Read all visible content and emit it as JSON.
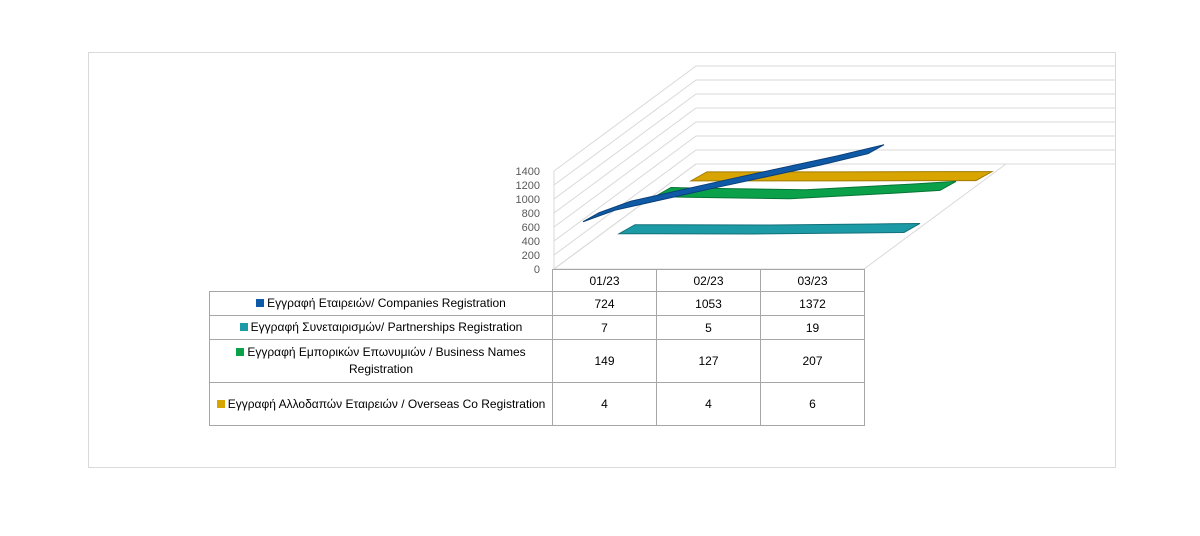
{
  "chart_data": {
    "type": "line",
    "style": "3d",
    "categories": [
      "01/23",
      "02/23",
      "03/23"
    ],
    "ylim": [
      0,
      1400
    ],
    "yticks": [
      0,
      200,
      400,
      600,
      800,
      1000,
      1200,
      1400
    ],
    "grid": true,
    "legend": "table",
    "series": [
      {
        "name": "Εγγραφή  Εταιρειών/ Companies Registration",
        "values": [
          724,
          1053,
          1372
        ],
        "color": "#0f5aa7",
        "dark": "#0b3f78"
      },
      {
        "name": "Εγγραφή  Συνεταιρισμών/ Partnerships Registration",
        "values": [
          7,
          5,
          19
        ],
        "color": "#1c9aa6",
        "dark": "#137079"
      },
      {
        "name": "Εγγραφή  Εμπορικών Επωνυμιών / Business Names Registration",
        "values": [
          149,
          127,
          207
        ],
        "color": "#0aa14a",
        "dark": "#077535"
      },
      {
        "name": "Εγγραφή  Αλλοδαπών  Εταιρειών / Overseas Co Registration",
        "values": [
          4,
          4,
          6
        ],
        "color": "#d8a500",
        "dark": "#a17b00"
      }
    ]
  }
}
